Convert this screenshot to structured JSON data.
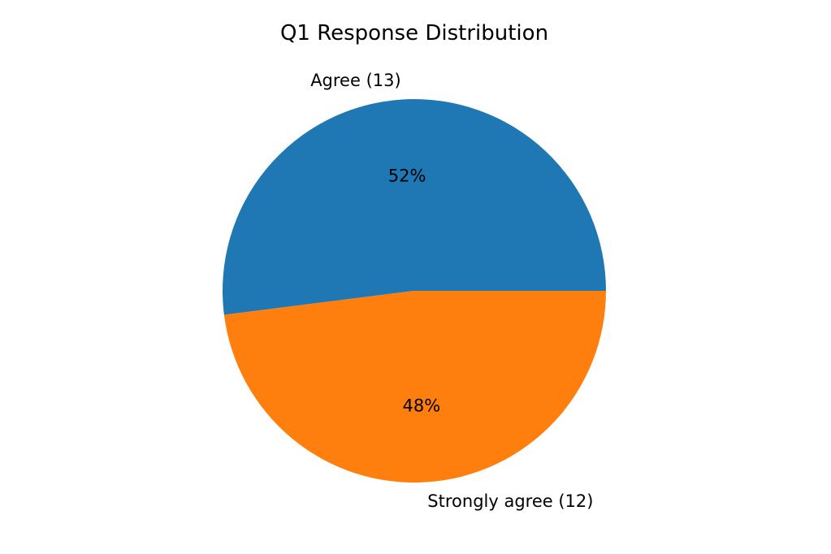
{
  "chart_data": {
    "type": "pie",
    "title": "Q1 Response Distribution",
    "slices": [
      {
        "label": "Agree (13)",
        "value": 13,
        "percent_label": "52%",
        "color": "#1f77b4"
      },
      {
        "label": "Strongly agree (12)",
        "value": 12,
        "percent_label": "48%",
        "color": "#ff7f0e"
      }
    ],
    "start_angle_deg": 0,
    "direction": "counterclockwise"
  }
}
